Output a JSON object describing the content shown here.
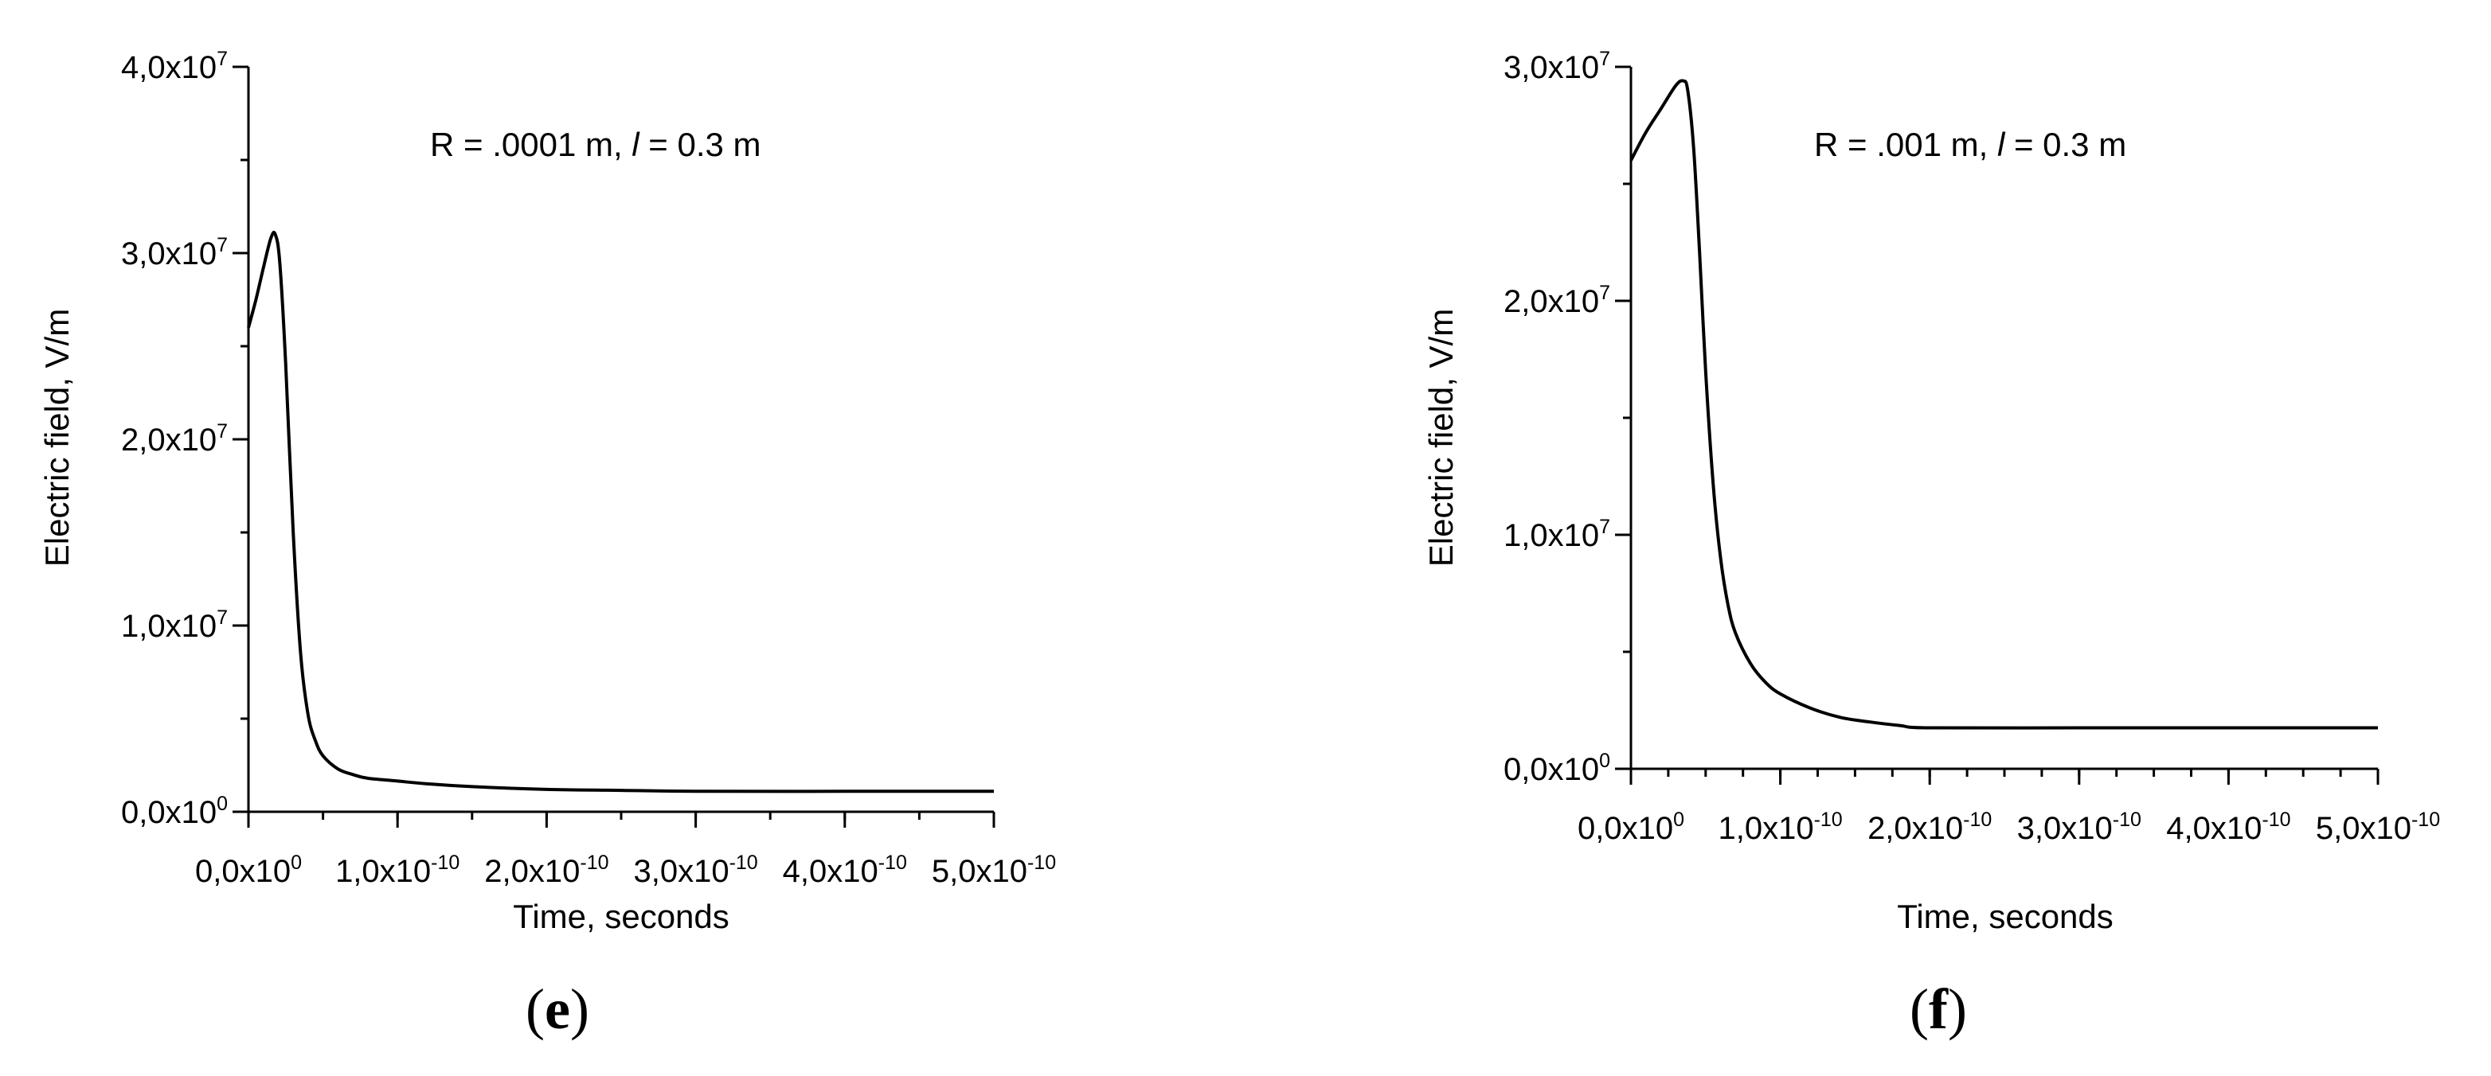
{
  "chart_data": [
    {
      "type": "line",
      "panel_label": "e",
      "annotation": {
        "prefix": "R = .0001 m, ",
        "italic": "l",
        "suffix": " = 0.3 m"
      },
      "xlabel": "Time, seconds",
      "ylabel": "Electric field, V/m",
      "xlim": [
        0,
        5e-10
      ],
      "ylim": [
        0,
        40000000.0
      ],
      "x_ticks": [
        {
          "value": 0,
          "mantissa": "0,0x10",
          "exp": "0"
        },
        {
          "value": 1e-10,
          "mantissa": "1,0x10",
          "exp": "-10"
        },
        {
          "value": 2e-10,
          "mantissa": "2,0x10",
          "exp": "-10"
        },
        {
          "value": 3e-10,
          "mantissa": "3,0x10",
          "exp": "-10"
        },
        {
          "value": 4e-10,
          "mantissa": "4,0x10",
          "exp": "-10"
        },
        {
          "value": 5e-10,
          "mantissa": "5,0x10",
          "exp": "-10"
        }
      ],
      "y_ticks": [
        {
          "value": 0,
          "mantissa": "0,0x10",
          "exp": "0"
        },
        {
          "value": 10000000.0,
          "mantissa": "1,0x10",
          "exp": "7"
        },
        {
          "value": 20000000.0,
          "mantissa": "2,0x10",
          "exp": "7"
        },
        {
          "value": 30000000.0,
          "mantissa": "3,0x10",
          "exp": "7"
        },
        {
          "value": 40000000.0,
          "mantissa": "4,0x10",
          "exp": "7"
        }
      ],
      "x_minor_step": 5e-11,
      "y_minor_step": 5000000.0,
      "series": [
        {
          "x": [
            0,
            5e-12,
            1e-11,
            1.5e-11,
            1.8e-11,
            2.1e-11,
            2.5e-11,
            3e-11,
            3.5e-11,
            4e-11,
            4.5e-11,
            5e-11,
            6e-11,
            7e-11,
            8e-11,
            1e-10,
            1.2e-10,
            1.5e-10,
            2e-10,
            2.5e-10,
            3e-10,
            4e-10,
            5e-10
          ],
          "y": [
            26000000.0,
            27500000.0,
            29200000.0,
            30800000.0,
            31000000.0,
            29500000.0,
            24000000.0,
            15000000.0,
            8500000.0,
            5200000.0,
            3800000.0,
            3000000.0,
            2300000.0,
            2000000.0,
            1800000.0,
            1650000.0,
            1500000.0,
            1350000.0,
            1200000.0,
            1150000.0,
            1100000.0,
            1100000.0,
            1100000.0
          ]
        }
      ]
    },
    {
      "type": "line",
      "panel_label": "f",
      "annotation": {
        "prefix": "R = .001 m, ",
        "italic": "l",
        "suffix": " = 0.3 m"
      },
      "xlabel": "Time, seconds",
      "ylabel": "Electric field, V/m",
      "xlim": [
        0,
        5e-10
      ],
      "ylim": [
        0,
        30000000.0
      ],
      "x_ticks": [
        {
          "value": 0,
          "mantissa": "0,0x10",
          "exp": "0"
        },
        {
          "value": 1e-10,
          "mantissa": "1,0x10",
          "exp": "-10"
        },
        {
          "value": 2e-10,
          "mantissa": "2,0x10",
          "exp": "-10"
        },
        {
          "value": 3e-10,
          "mantissa": "3,0x10",
          "exp": "-10"
        },
        {
          "value": 4e-10,
          "mantissa": "4,0x10",
          "exp": "-10"
        },
        {
          "value": 5e-10,
          "mantissa": "5,0x10",
          "exp": "-10"
        }
      ],
      "y_ticks": [
        {
          "value": 0,
          "mantissa": "0,0x10",
          "exp": "0"
        },
        {
          "value": 10000000.0,
          "mantissa": "1,0x10",
          "exp": "7"
        },
        {
          "value": 20000000.0,
          "mantissa": "2,0x10",
          "exp": "7"
        },
        {
          "value": 30000000.0,
          "mantissa": "3,0x10",
          "exp": "7"
        }
      ],
      "x_minor_step": 2.5e-11,
      "y_minor_step": 5000000.0,
      "series": [
        {
          "x": [
            0,
            1e-11,
            2e-11,
            3e-11,
            3.5e-11,
            3.8e-11,
            4.2e-11,
            4.6e-11,
            5e-11,
            5.5e-11,
            6e-11,
            6.5e-11,
            7e-11,
            8e-11,
            9e-11,
            1e-10,
            1.2e-10,
            1.4e-10,
            1.6e-10,
            1.8e-10,
            2e-10,
            3e-10,
            4e-10,
            5e-10
          ],
          "y": [
            26000000.0,
            27200000.0,
            28200000.0,
            29200000.0,
            29400000.0,
            29000000.0,
            26500000.0,
            22000000.0,
            17000000.0,
            12200000.0,
            9000000.0,
            7000000.0,
            5800000.0,
            4500000.0,
            3700000.0,
            3200000.0,
            2600000.0,
            2200000.0,
            2000000.0,
            1850000.0,
            1750000.0,
            1750000.0,
            1750000.0,
            1750000.0
          ]
        }
      ]
    }
  ]
}
